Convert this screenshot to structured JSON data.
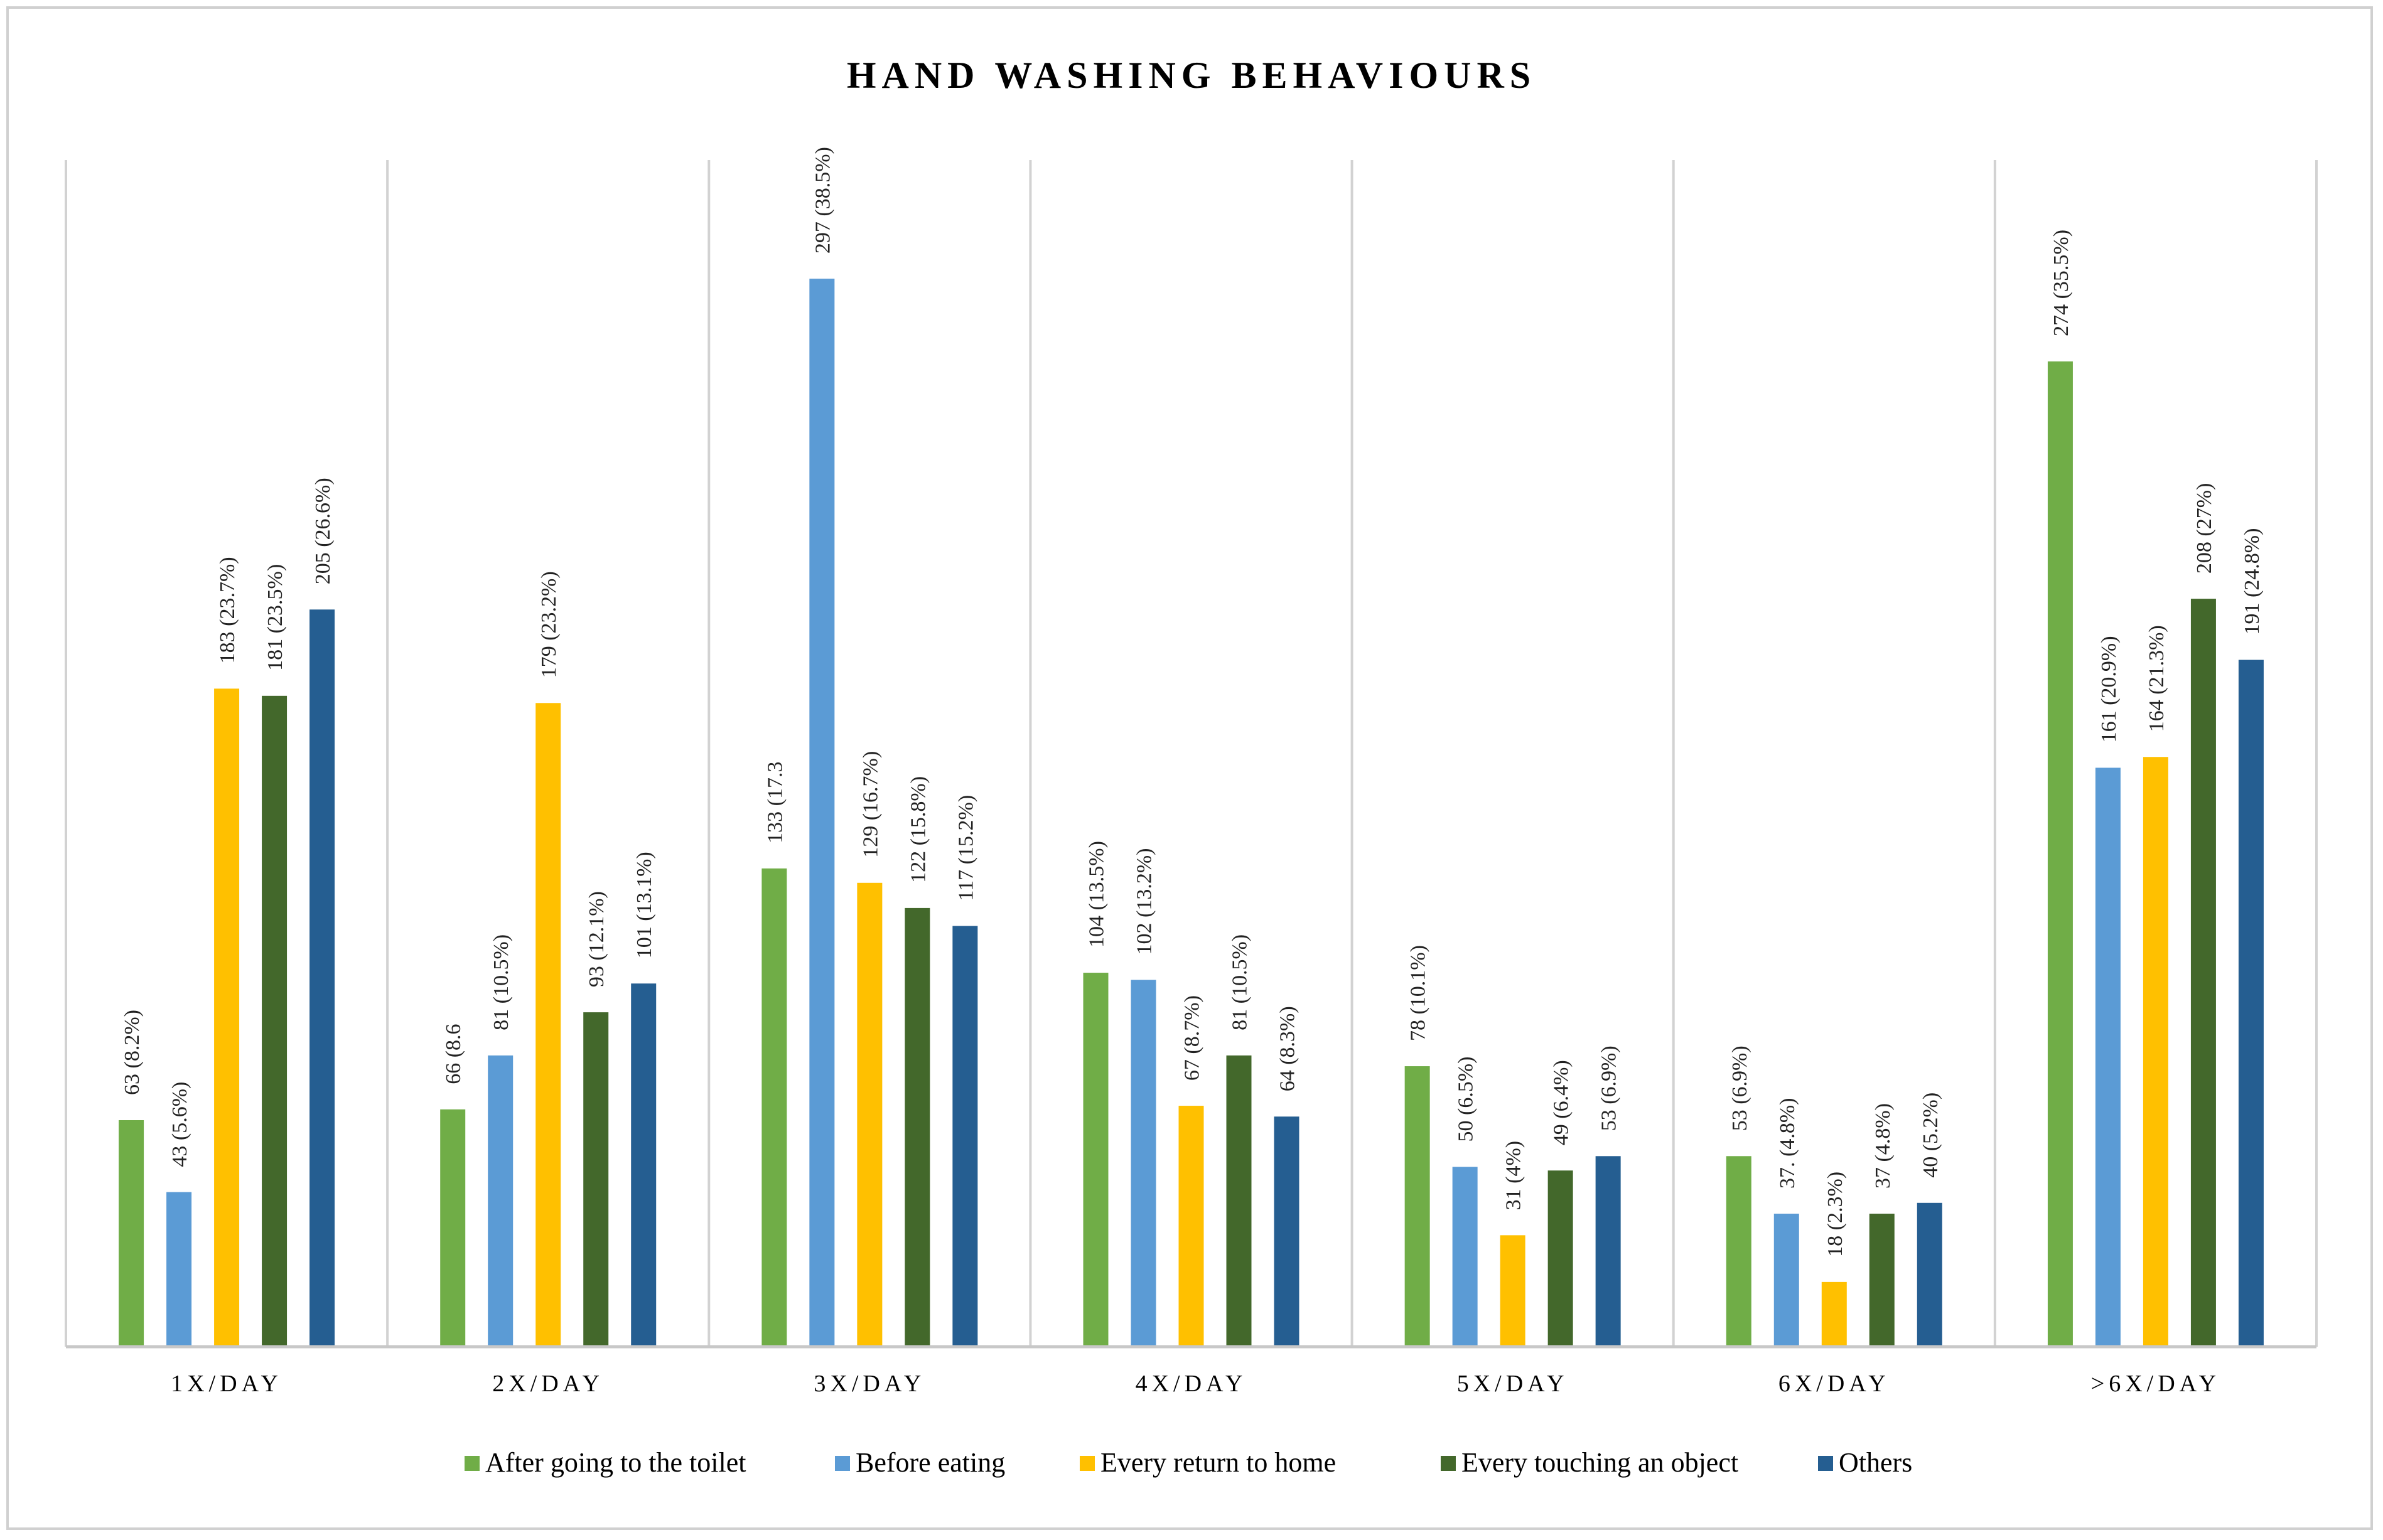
{
  "chart_data": {
    "type": "bar",
    "title": "HAND WASHING BEHAVIOURS",
    "categories": [
      "1X/DAY",
      "2X/DAY",
      "3X/DAY",
      "4X/DAY",
      "5X/DAY",
      "6X/DAY",
      ">6X/DAY"
    ],
    "series": [
      {
        "name": "After going to the toilet",
        "color": "#70AD47",
        "values": [
          63,
          66,
          133,
          104,
          78,
          53,
          274
        ],
        "labels": [
          "63 (8.2%)",
          "66 (8.6",
          "133 (17.3",
          "104 (13.5%)",
          "78 (10.1%)",
          "53 (6.9%)",
          "274 (35.5%)"
        ]
      },
      {
        "name": "Before eating",
        "color": "#5B9BD5",
        "values": [
          43,
          81,
          297,
          102,
          50,
          37,
          161
        ],
        "labels": [
          "43 (5.6%)",
          "81 (10.5%)",
          "297 (38.5%)",
          "102 (13.2%)",
          "50 (6.5%)",
          "37. (4.8%)",
          "161 (20.9%)"
        ]
      },
      {
        "name": "Every return to home",
        "color": "#FFC000",
        "values": [
          183,
          179,
          129,
          67,
          31,
          18,
          164
        ],
        "labels": [
          "183 (23.7%)",
          "179 (23.2%)",
          "129 (16.7%)",
          "67 (8.7%)",
          "31 (4%)",
          "18 (2.3%)",
          "164 (21.3%)"
        ]
      },
      {
        "name": "Every touching an object",
        "color": "#43682B",
        "values": [
          181,
          93,
          122,
          81,
          49,
          37,
          208
        ],
        "labels": [
          "181 (23.5%)",
          "93 (12.1%)",
          "122 (15.8%)",
          "81 (10.5%)",
          "49 (6.4%)",
          "37 (4.8%)",
          "208 (27%)"
        ]
      },
      {
        "name": "Others",
        "color": "#255E91",
        "values": [
          205,
          101,
          117,
          64,
          53,
          40,
          191
        ],
        "labels": [
          "205 (26.6%)",
          "101 (13.1%)",
          "117 (15.2%)",
          "64 (8.3%)",
          "53 (6.9%)",
          "40 (5.2%)",
          "191 (24.8%)"
        ]
      }
    ],
    "ylim": [
      0,
      330
    ],
    "xlabel": "",
    "ylabel": "",
    "grid": "vertical category dividers",
    "legend": "bottom"
  }
}
